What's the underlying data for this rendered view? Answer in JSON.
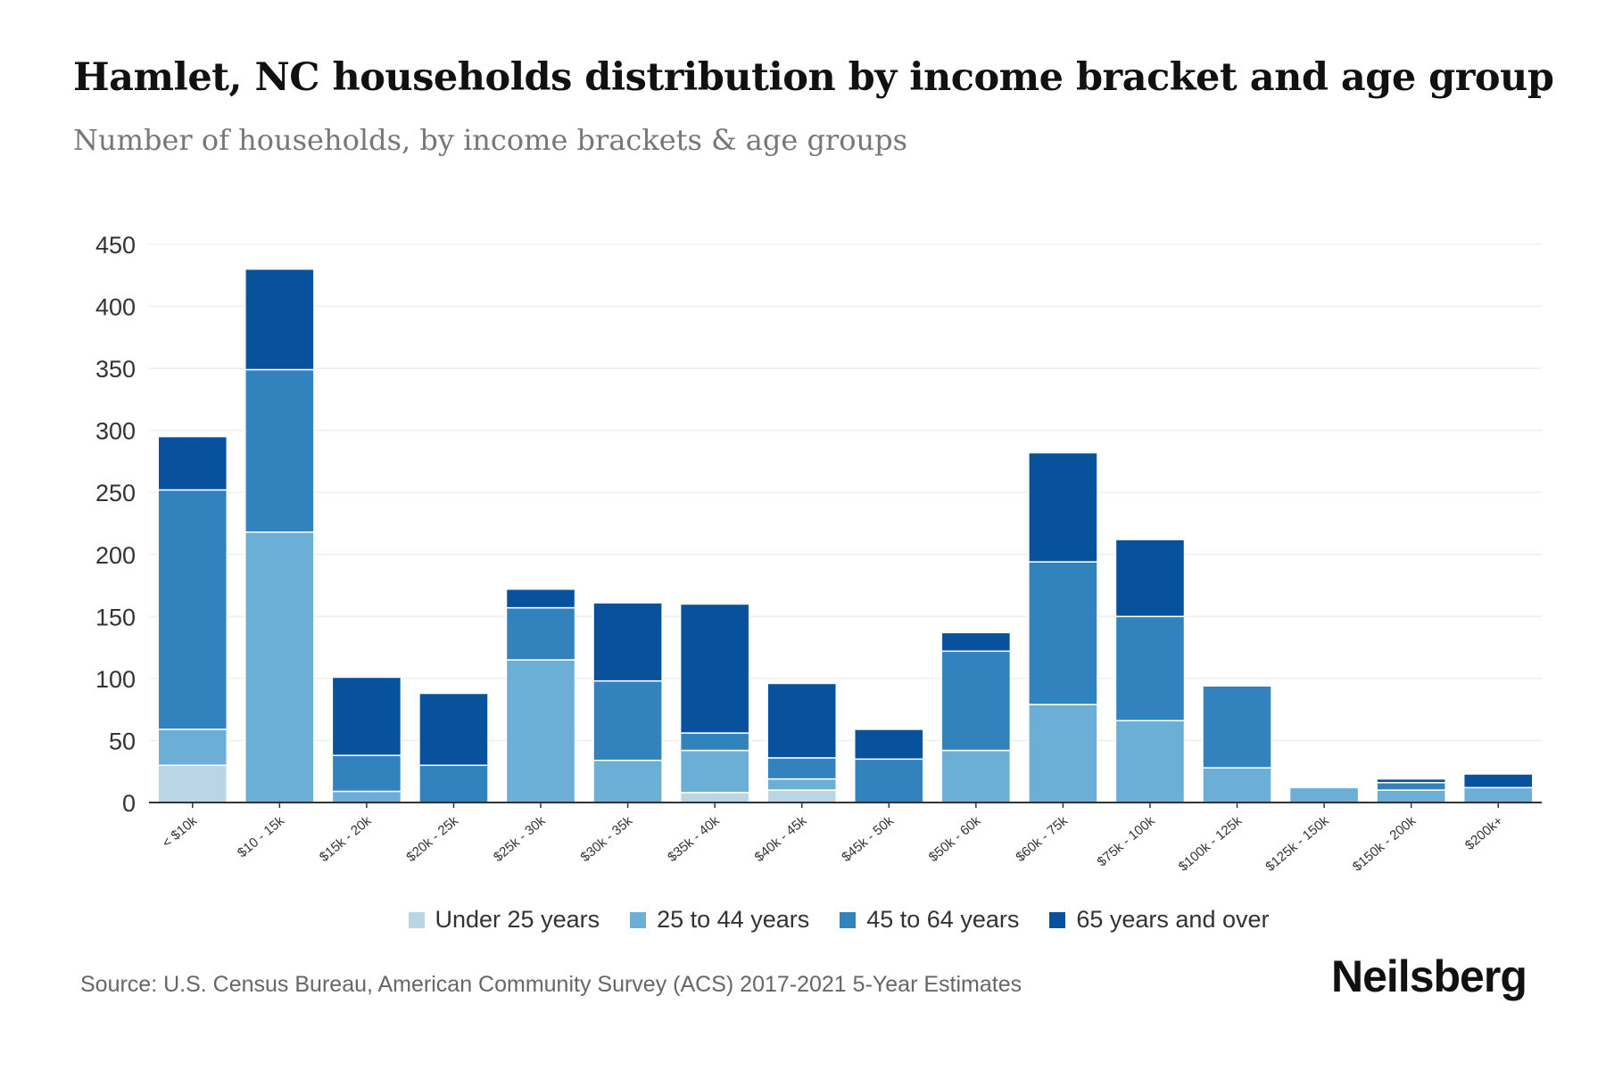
{
  "title": "Hamlet, NC households distribution by income bracket and age group",
  "subtitle": "Number of households, by income brackets & age groups",
  "source": "Source: U.S. Census Bureau, American Community Survey (ACS) 2017-2021 5-Year Estimates",
  "logo": "Neilsberg",
  "chart_data": {
    "type": "bar",
    "stacked": true,
    "title": "Hamlet, NC households distribution by income bracket and age group",
    "xlabel": "",
    "ylabel": "",
    "ylim": [
      0,
      450
    ],
    "yticks": [
      0,
      50,
      100,
      150,
      200,
      250,
      300,
      350,
      400,
      450
    ],
    "grid": true,
    "legend_position": "bottom",
    "categories": [
      "< $10k",
      "$10 - 15k",
      "$15k - 20k",
      "$20k - 25k",
      "$25k - 30k",
      "$30k - 35k",
      "$35k - 40k",
      "$40k - 45k",
      "$45k - 50k",
      "$50k - 60k",
      "$60k - 75k",
      "$75k - 100k",
      "$100k - 125k",
      "$125k - 150k",
      "$150k - 200k",
      "$200k+"
    ],
    "series": [
      {
        "name": "Under 25 years",
        "color": "#bad6e6",
        "values": [
          30,
          0,
          0,
          0,
          0,
          0,
          8,
          10,
          0,
          0,
          0,
          0,
          0,
          0,
          0,
          0
        ]
      },
      {
        "name": "25 to 44 years",
        "color": "#6baed6",
        "values": [
          29,
          218,
          9,
          0,
          115,
          34,
          34,
          9,
          0,
          42,
          79,
          66,
          28,
          12,
          10,
          12
        ]
      },
      {
        "name": "45 to 64 years",
        "color": "#3182bd",
        "values": [
          193,
          131,
          29,
          30,
          42,
          64,
          14,
          17,
          35,
          80,
          115,
          84,
          66,
          0,
          6,
          0
        ]
      },
      {
        "name": "65 years and over",
        "color": "#08519c",
        "values": [
          43,
          81,
          63,
          58,
          15,
          63,
          104,
          60,
          24,
          15,
          88,
          62,
          0,
          0,
          3,
          11
        ]
      }
    ]
  }
}
